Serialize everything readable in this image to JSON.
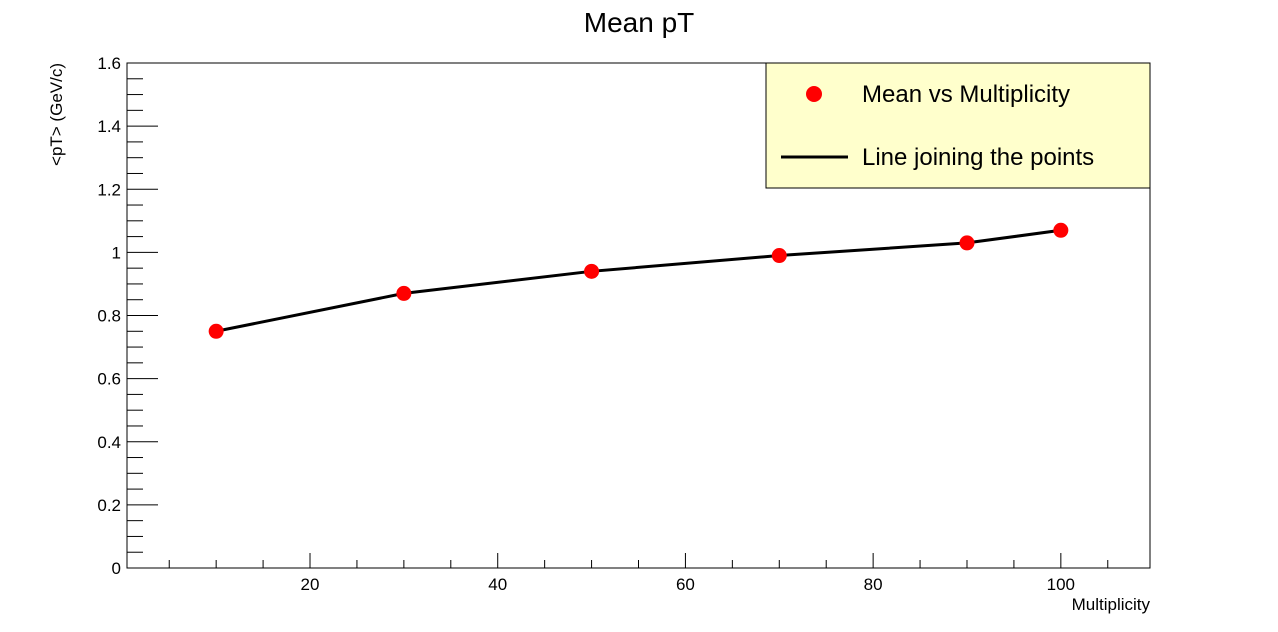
{
  "chart_data": {
    "type": "line",
    "title": "Mean pT",
    "xlabel": "Multiplicity",
    "ylabel": "<pT> (GeV/c)",
    "xlim": [
      0.5,
      109.5
    ],
    "ylim": [
      0,
      1.6
    ],
    "x_ticks": [
      20,
      40,
      60,
      80,
      100
    ],
    "x_tick_labels": [
      "20",
      "40",
      "60",
      "80",
      "100"
    ],
    "y_ticks": [
      0,
      0.2,
      0.4,
      0.6,
      0.8,
      1.0,
      1.2,
      1.4,
      1.6
    ],
    "y_tick_labels": [
      "0",
      "0.2",
      "0.4",
      "0.6",
      "0.8",
      "1",
      "1.2",
      "1.4",
      "1.6"
    ],
    "grid": false,
    "series": [
      {
        "name": "Mean vs Multiplicity",
        "x": [
          10,
          30,
          50,
          70,
          90,
          100
        ],
        "values": [
          0.75,
          0.87,
          0.94,
          0.99,
          1.03,
          1.07
        ],
        "marker_color": "#ff0000",
        "line_color": "#000000"
      }
    ],
    "legend": {
      "position": "top-right",
      "background": "#ffffcc",
      "entries": [
        {
          "label": "Mean vs Multiplicity",
          "kind": "marker",
          "color": "#ff0000"
        },
        {
          "label": "Line joining the points",
          "kind": "line",
          "color": "#000000"
        }
      ]
    }
  }
}
